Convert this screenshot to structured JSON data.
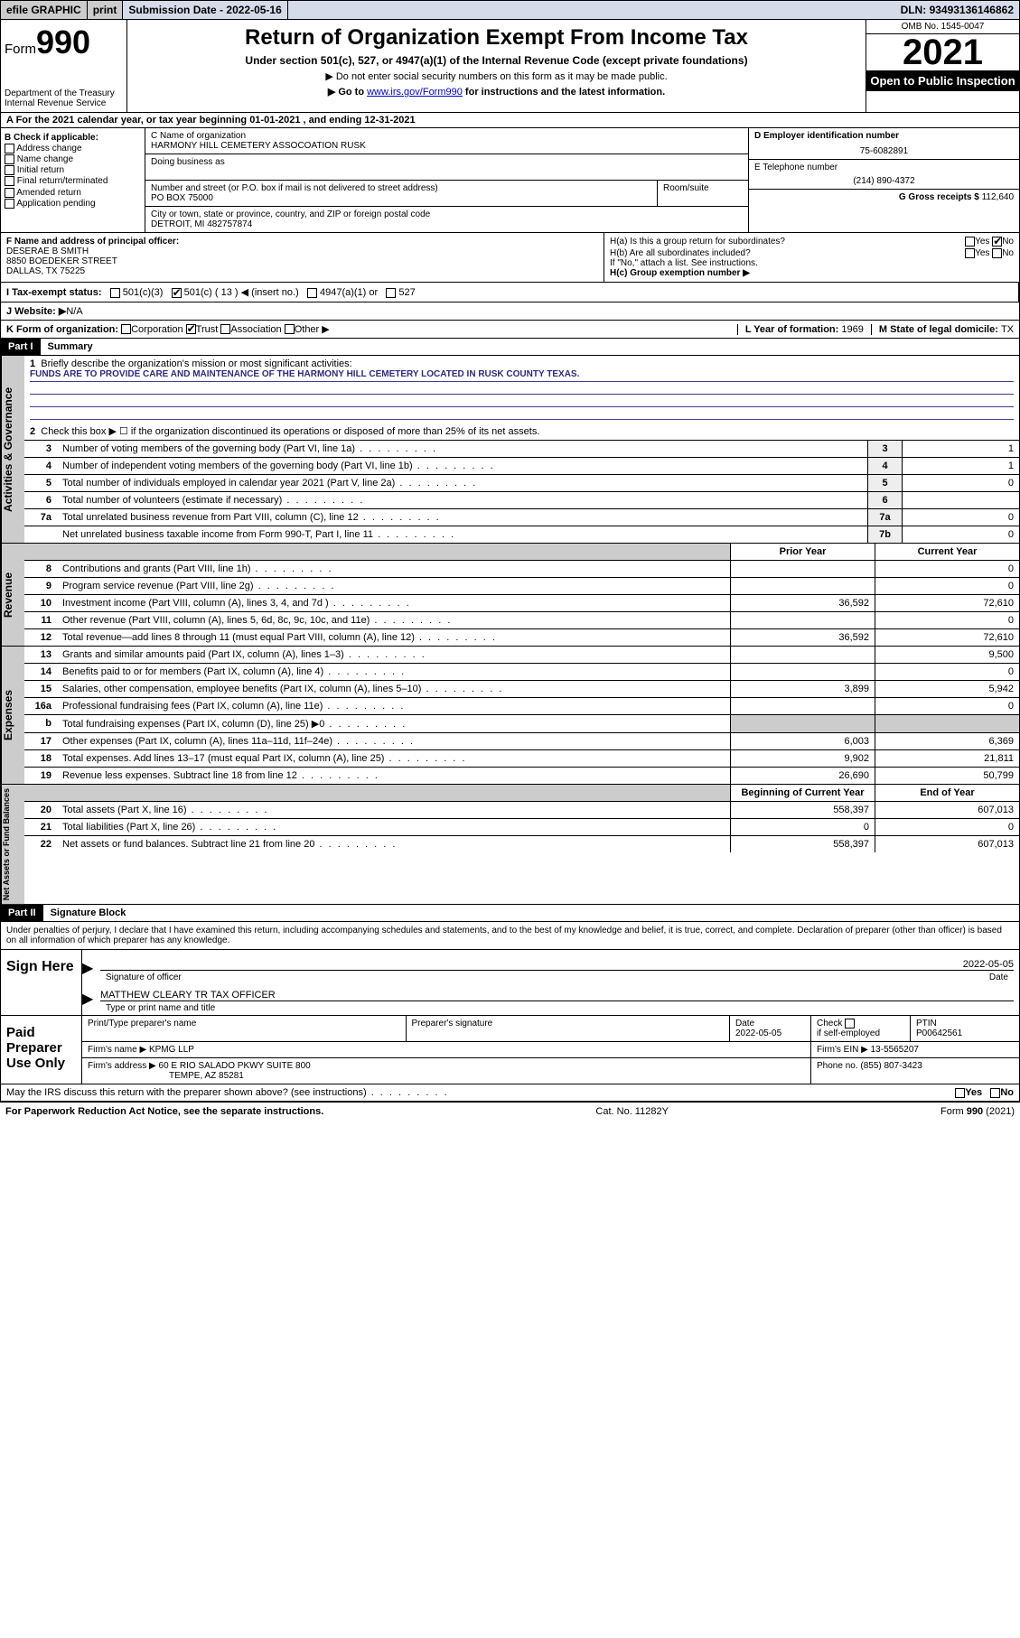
{
  "topbar": {
    "efile": "efile GRAPHIC",
    "print": "print",
    "sub_lbl": "Submission Date - ",
    "sub_date": "2022-05-16",
    "dln_lbl": "DLN: ",
    "dln": "93493136146862"
  },
  "header": {
    "form_pre": "Form",
    "form_no": "990",
    "dept": "Department of the Treasury",
    "irs": "Internal Revenue Service",
    "title": "Return of Organization Exempt From Income Tax",
    "sub": "Under section 501(c), 527, or 4947(a)(1) of the Internal Revenue Code (except private foundations)",
    "note1": "▶ Do not enter social security numbers on this form as it may be made public.",
    "note2_pre": "▶ Go to ",
    "note2_link": "www.irs.gov/Form990",
    "note2_post": " for instructions and the latest information.",
    "omb": "OMB No. 1545-0047",
    "year": "2021",
    "open": "Open to Public Inspection"
  },
  "row_a": "A For the 2021 calendar year, or tax year beginning 01-01-2021    , and ending 12-31-2021",
  "box_b": {
    "title": "B Check if applicable:",
    "opts": [
      "Address change",
      "Name change",
      "Initial return",
      "Final return/terminated",
      "Amended return",
      "Application pending"
    ]
  },
  "box_c": {
    "lbl_name": "C Name of organization",
    "name": "HARMONY HILL CEMETERY ASSOCOATION RUSK",
    "dba": "Doing business as",
    "lbl_street": "Number and street (or P.O. box if mail is not delivered to street address)",
    "street": "PO BOX 75000",
    "room": "Room/suite",
    "lbl_city": "City or town, state or province, country, and ZIP or foreign postal code",
    "city": "DETROIT, MI  482757874"
  },
  "box_d": {
    "lbl_ein": "D Employer identification number",
    "ein": "75-6082891",
    "lbl_tel": "E Telephone number",
    "tel": "(214) 890-4372",
    "lbl_gross": "G Gross receipts $ ",
    "gross": "112,640"
  },
  "box_f": {
    "lbl": "F  Name and address of principal officer:",
    "name": "DESERAE B SMITH",
    "addr1": "8850 BOEDEKER STREET",
    "addr2": "DALLAS, TX  75225"
  },
  "box_h": {
    "ha": "H(a)  Is this a group return for subordinates?",
    "hb": "H(b)  Are all subordinates included?",
    "hb_note": "If \"No,\" attach a list. See instructions.",
    "hc": "H(c)  Group exemption number ▶",
    "yes": "Yes",
    "no": "No"
  },
  "row_i": {
    "lbl": "I  Tax-exempt status:",
    "o1": "501(c)(3)",
    "o2a": "501(c) ( ",
    "o2n": "13",
    "o2b": " ) ◀ (insert no.)",
    "o3": "4947(a)(1) or",
    "o4": "527"
  },
  "row_j": {
    "lbl": "J  Website: ▶ ",
    "val": "N/A"
  },
  "row_k": {
    "lbl": "K Form of organization:",
    "o1": "Corporation",
    "o2": "Trust",
    "o3": "Association",
    "o4": "Other ▶",
    "l_lbl": "L Year of formation: ",
    "l_val": "1969",
    "m_lbl": "M State of legal domicile: ",
    "m_val": "TX"
  },
  "part1": {
    "hdr": "Part I",
    "title": "Summary",
    "vtab": "Activities & Governance",
    "q1": "Briefly describe the organization's mission or most significant activities:",
    "mission": "FUNDS ARE TO PROVIDE CARE AND MAINTENANCE OF THE HARMONY HILL CEMETERY LOCATED IN RUSK COUNTY TEXAS.",
    "q2": "Check this box ▶ ☐  if the organization discontinued its operations or disposed of more than 25% of its net assets.",
    "rows": [
      {
        "n": "3",
        "t": "Number of voting members of the governing body (Part VI, line 1a)",
        "box": "3",
        "v": "1"
      },
      {
        "n": "4",
        "t": "Number of independent voting members of the governing body (Part VI, line 1b)",
        "box": "4",
        "v": "1"
      },
      {
        "n": "5",
        "t": "Total number of individuals employed in calendar year 2021 (Part V, line 2a)",
        "box": "5",
        "v": "0"
      },
      {
        "n": "6",
        "t": "Total number of volunteers (estimate if necessary)",
        "box": "6",
        "v": ""
      },
      {
        "n": "7a",
        "t": "Total unrelated business revenue from Part VIII, column (C), line 12",
        "box": "7a",
        "v": "0"
      },
      {
        "n": "",
        "t": "Net unrelated business taxable income from Form 990-T, Part I, line 11",
        "box": "7b",
        "v": "0"
      }
    ]
  },
  "fin": {
    "hdr_prior": "Prior Year",
    "hdr_curr": "Current Year",
    "hdr_beg": "Beginning of Current Year",
    "hdr_end": "End of Year",
    "rev_tab": "Revenue",
    "exp_tab": "Expenses",
    "net_tab": "Net Assets or Fund Balances",
    "rev": [
      {
        "n": "8",
        "t": "Contributions and grants (Part VIII, line 1h)",
        "p": "",
        "c": "0"
      },
      {
        "n": "9",
        "t": "Program service revenue (Part VIII, line 2g)",
        "p": "",
        "c": "0"
      },
      {
        "n": "10",
        "t": "Investment income (Part VIII, column (A), lines 3, 4, and 7d )",
        "p": "36,592",
        "c": "72,610"
      },
      {
        "n": "11",
        "t": "Other revenue (Part VIII, column (A), lines 5, 6d, 8c, 9c, 10c, and 11e)",
        "p": "",
        "c": "0"
      },
      {
        "n": "12",
        "t": "Total revenue—add lines 8 through 11 (must equal Part VIII, column (A), line 12)",
        "p": "36,592",
        "c": "72,610"
      }
    ],
    "exp": [
      {
        "n": "13",
        "t": "Grants and similar amounts paid (Part IX, column (A), lines 1–3)",
        "p": "",
        "c": "9,500"
      },
      {
        "n": "14",
        "t": "Benefits paid to or for members (Part IX, column (A), line 4)",
        "p": "",
        "c": "0"
      },
      {
        "n": "15",
        "t": "Salaries, other compensation, employee benefits (Part IX, column (A), lines 5–10)",
        "p": "3,899",
        "c": "5,942"
      },
      {
        "n": "16a",
        "t": "Professional fundraising fees (Part IX, column (A), line 11e)",
        "p": "",
        "c": "0"
      },
      {
        "n": "b",
        "t": "Total fundraising expenses (Part IX, column (D), line 25) ▶0",
        "p": "grey",
        "c": "grey"
      },
      {
        "n": "17",
        "t": "Other expenses (Part IX, column (A), lines 11a–11d, 11f–24e)",
        "p": "6,003",
        "c": "6,369"
      },
      {
        "n": "18",
        "t": "Total expenses. Add lines 13–17 (must equal Part IX, column (A), line 25)",
        "p": "9,902",
        "c": "21,811"
      },
      {
        "n": "19",
        "t": "Revenue less expenses. Subtract line 18 from line 12",
        "p": "26,690",
        "c": "50,799"
      }
    ],
    "net": [
      {
        "n": "20",
        "t": "Total assets (Part X, line 16)",
        "p": "558,397",
        "c": "607,013"
      },
      {
        "n": "21",
        "t": "Total liabilities (Part X, line 26)",
        "p": "0",
        "c": "0"
      },
      {
        "n": "22",
        "t": "Net assets or fund balances. Subtract line 21 from line 20",
        "p": "558,397",
        "c": "607,013"
      }
    ]
  },
  "part2": {
    "hdr": "Part II",
    "title": "Signature Block",
    "penalties": "Under penalties of perjury, I declare that I have examined this return, including accompanying schedules and statements, and to the best of my knowledge and belief, it is true, correct, and complete. Declaration of preparer (other than officer) is based on all information of which preparer has any knowledge."
  },
  "sign": {
    "here": "Sign Here",
    "sig_lbl": "Signature of officer",
    "date_lbl": "Date",
    "date": "2022-05-05",
    "name": "MATTHEW CLEARY TR TAX OFFICER",
    "name_lbl": "Type or print name and title"
  },
  "prep": {
    "lbl": "Paid Preparer Use Only",
    "h1": "Print/Type preparer's name",
    "h2": "Preparer's signature",
    "h3": "Date",
    "h3v": "2022-05-05",
    "h4a": "Check",
    "h4b": "if self-employed",
    "h5": "PTIN",
    "h5v": "P00642561",
    "firm_lbl": "Firm's name    ▶ ",
    "firm": "KPMG LLP",
    "ein_lbl": "Firm's EIN ▶ ",
    "ein": "13-5565207",
    "addr_lbl": "Firm's address ▶ ",
    "addr1": "60 E RIO SALADO PKWY SUITE 800",
    "addr2": "TEMPE, AZ  85281",
    "phone_lbl": "Phone no. ",
    "phone": "(855) 807-3423"
  },
  "may": {
    "q": "May the IRS discuss this return with the preparer shown above? (see instructions)",
    "yes": "Yes",
    "no": "No"
  },
  "footer": {
    "l": "For Paperwork Reduction Act Notice, see the separate instructions.",
    "m": "Cat. No. 11282Y",
    "r_pre": "Form ",
    "r_b": "990",
    "r_post": " (2021)"
  }
}
